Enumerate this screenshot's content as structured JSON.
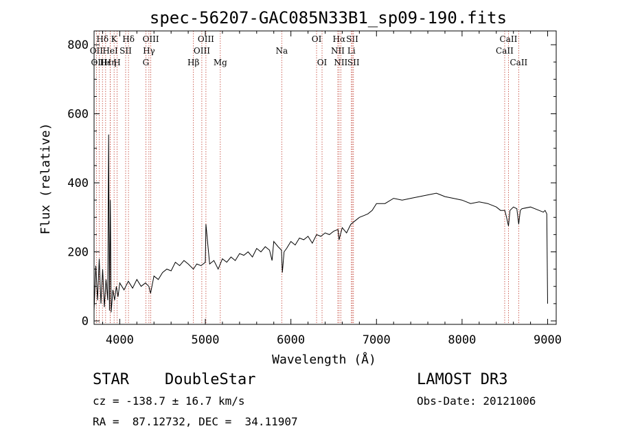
{
  "chart_data": {
    "type": "line",
    "title": "spec-56207-GAC085N33B1_sp09-190.fits",
    "xlabel": "Wavelength (Å)",
    "ylabel": "Flux (relative)",
    "xlim": [
      3700,
      9100
    ],
    "ylim": [
      -10,
      840
    ],
    "x_ticks": [
      4000,
      5000,
      6000,
      7000,
      8000,
      9000
    ],
    "y_ticks": [
      0,
      200,
      400,
      600,
      800
    ],
    "series": [
      {
        "name": "flux",
        "x": [
          3700,
          3720,
          3740,
          3760,
          3780,
          3800,
          3820,
          3840,
          3860,
          3870,
          3880,
          3890,
          3900,
          3920,
          3940,
          3960,
          3980,
          4000,
          4050,
          4100,
          4150,
          4200,
          4250,
          4300,
          4340,
          4360,
          4400,
          4450,
          4500,
          4550,
          4600,
          4650,
          4700,
          4750,
          4800,
          4860,
          4900,
          4950,
          5000,
          5007,
          5050,
          5100,
          5150,
          5200,
          5250,
          5300,
          5350,
          5400,
          5450,
          5500,
          5550,
          5600,
          5650,
          5700,
          5750,
          5780,
          5800,
          5850,
          5890,
          5900,
          5920,
          5950,
          6000,
          6050,
          6100,
          6150,
          6200,
          6250,
          6300,
          6350,
          6400,
          6450,
          6500,
          6550,
          6563,
          6600,
          6650,
          6700,
          6750,
          6800,
          6850,
          6900,
          6950,
          7000,
          7100,
          7200,
          7300,
          7400,
          7500,
          7600,
          7700,
          7750,
          7800,
          7900,
          8000,
          8100,
          8200,
          8300,
          8400,
          8450,
          8500,
          8520,
          8542,
          8560,
          8600,
          8640,
          8662,
          8680,
          8700,
          8800,
          8900,
          8950,
          8970,
          8990,
          9000
        ],
        "values": [
          30,
          160,
          60,
          180,
          50,
          150,
          40,
          120,
          60,
          540,
          30,
          350,
          25,
          90,
          60,
          100,
          70,
          110,
          90,
          115,
          95,
          120,
          100,
          110,
          100,
          80,
          130,
          120,
          140,
          150,
          145,
          170,
          160,
          175,
          165,
          150,
          165,
          160,
          170,
          280,
          165,
          175,
          150,
          180,
          170,
          185,
          175,
          195,
          190,
          200,
          185,
          210,
          200,
          215,
          205,
          175,
          230,
          215,
          205,
          140,
          200,
          210,
          230,
          220,
          240,
          235,
          245,
          225,
          250,
          245,
          255,
          250,
          260,
          265,
          235,
          270,
          255,
          280,
          290,
          300,
          305,
          310,
          320,
          340,
          340,
          355,
          350,
          355,
          360,
          365,
          370,
          365,
          360,
          355,
          350,
          340,
          345,
          340,
          330,
          320,
          320,
          300,
          275,
          320,
          330,
          325,
          280,
          320,
          325,
          330,
          320,
          315,
          320,
          310,
          50
        ]
      }
    ],
    "line_markers": [
      {
        "label": "Hδ",
        "x": 3798,
        "row": 1
      },
      {
        "label": "OII",
        "x": 3727,
        "row": 2
      },
      {
        "label": "OIII",
        "x": 3760,
        "row": 3
      },
      {
        "label": "Hε",
        "x": 3835,
        "row": 3
      },
      {
        "label": "Hη",
        "x": 3889,
        "row": 3
      },
      {
        "label": "K",
        "x": 3934,
        "row": 1
      },
      {
        "label": "HeI",
        "x": 3889,
        "row": 2
      },
      {
        "label": "SII",
        "x": 4069,
        "row": 2
      },
      {
        "label": "H",
        "x": 3969,
        "row": 3
      },
      {
        "label": "Hδ",
        "x": 4102,
        "row": 1
      },
      {
        "label": "OIII",
        "x": 4363,
        "row": 1
      },
      {
        "label": "Hγ",
        "x": 4341,
        "row": 2
      },
      {
        "label": "G",
        "x": 4305,
        "row": 3
      },
      {
        "label": "Hβ",
        "x": 4861,
        "row": 3
      },
      {
        "label": "OIII",
        "x": 5007,
        "row": 1
      },
      {
        "label": "OIII",
        "x": 4959,
        "row": 2
      },
      {
        "label": "Mg",
        "x": 5175,
        "row": 3
      },
      {
        "label": "Na",
        "x": 5893,
        "row": 2
      },
      {
        "label": "OI",
        "x": 6300,
        "row": 1
      },
      {
        "label": "OI",
        "x": 6364,
        "row": 3
      },
      {
        "label": "Hα",
        "x": 6563,
        "row": 1
      },
      {
        "label": "SII",
        "x": 6717,
        "row": 1
      },
      {
        "label": "NII",
        "x": 6548,
        "row": 2
      },
      {
        "label": "Li",
        "x": 6707,
        "row": 2
      },
      {
        "label": "NII",
        "x": 6583,
        "row": 3
      },
      {
        "label": "SII",
        "x": 6731,
        "row": 3
      },
      {
        "label": "CaII",
        "x": 8542,
        "row": 1
      },
      {
        "label": "CaII",
        "x": 8498,
        "row": 2
      },
      {
        "label": "CaII",
        "x": 8662,
        "row": 3
      }
    ]
  },
  "info": {
    "class_label": "STAR",
    "subclass": "DoubleStar",
    "survey": "LAMOST DR3",
    "cz_line": "cz = -138.7 ± 16.7 km/s",
    "obs_date": "Obs-Date: 20121006",
    "radec_line": "RA =  87.12732, DEC =  34.11907"
  }
}
